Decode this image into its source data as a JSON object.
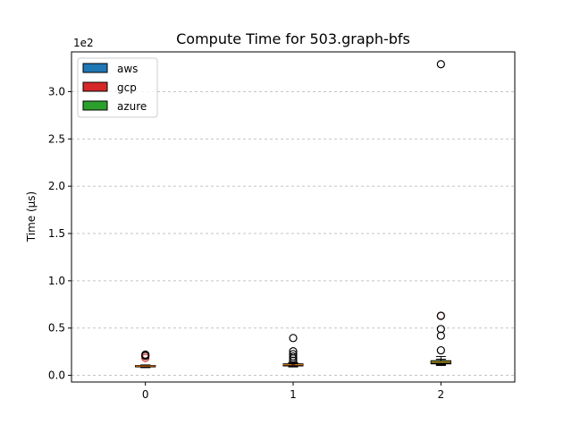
{
  "chart_data": {
    "type": "box",
    "title": "Compute Time for 503.graph-bfs",
    "xlabel": "",
    "ylabel": "Time (µs)",
    "y_scale_label": "1e2",
    "categories": [
      "0",
      "1",
      "2"
    ],
    "ylim": [
      -7,
      342
    ],
    "yticks": [
      0.0,
      0.5,
      1.0,
      1.5,
      2.0,
      2.5,
      3.0
    ],
    "ytick_labels": [
      "0.0",
      "0.5",
      "1.0",
      "1.5",
      "2.0",
      "2.5",
      "3.0"
    ],
    "ytick_multiplier": 100,
    "grid": "y-dashed",
    "legend": {
      "placement": "top-left",
      "entries": [
        "aws",
        "gcp",
        "azure"
      ]
    },
    "series": [
      {
        "name": "aws",
        "color": "#1f77b4",
        "boxes": [
          {
            "category": "0",
            "whisker_low": 8.5,
            "q1": 9.2,
            "median": 9.8,
            "q3": 10.3,
            "whisker_high": 11.0,
            "outliers": []
          },
          {
            "category": "1",
            "whisker_low": 9.0,
            "q1": 10.0,
            "median": 10.8,
            "q3": 11.8,
            "whisker_high": 13.0,
            "outliers": []
          },
          {
            "category": "2",
            "whisker_low": 11.0,
            "q1": 12.2,
            "median": 13.5,
            "q3": 15.0,
            "whisker_high": 17.0,
            "outliers": []
          }
        ]
      },
      {
        "name": "gcp",
        "color": "#d62728",
        "boxes": [
          {
            "category": "0",
            "whisker_low": 8.2,
            "q1": 9.0,
            "median": 9.6,
            "q3": 10.2,
            "whisker_high": 11.0,
            "outliers": [
              18.5,
              21.0
            ]
          },
          {
            "category": "1",
            "whisker_low": 9.0,
            "q1": 10.2,
            "median": 11.0,
            "q3": 12.0,
            "whisker_high": 13.5,
            "outliers": []
          },
          {
            "category": "2",
            "whisker_low": 11.5,
            "q1": 12.5,
            "median": 13.8,
            "q3": 15.0,
            "whisker_high": 17.0,
            "outliers": [
              63.0
            ]
          }
        ]
      },
      {
        "name": "azure",
        "color": "#2ca02c",
        "boxes": [
          {
            "category": "0",
            "whisker_low": 8.8,
            "q1": 9.4,
            "median": 9.9,
            "q3": 10.4,
            "whisker_high": 11.0,
            "outliers": [
              20.5,
              22.0
            ]
          },
          {
            "category": "1",
            "whisker_low": 9.2,
            "q1": 10.5,
            "median": 11.2,
            "q3": 12.2,
            "whisker_high": 13.5,
            "outliers": [
              15.5,
              18.0,
              20.0,
              22.5,
              25.5,
              39.5
            ]
          },
          {
            "category": "2",
            "whisker_low": 10.5,
            "q1": 12.8,
            "median": 14.0,
            "q3": 15.5,
            "whisker_high": 20.0,
            "outliers": [
              26.5,
              42.0,
              49.0,
              63.0,
              329.0
            ]
          }
        ]
      }
    ]
  }
}
